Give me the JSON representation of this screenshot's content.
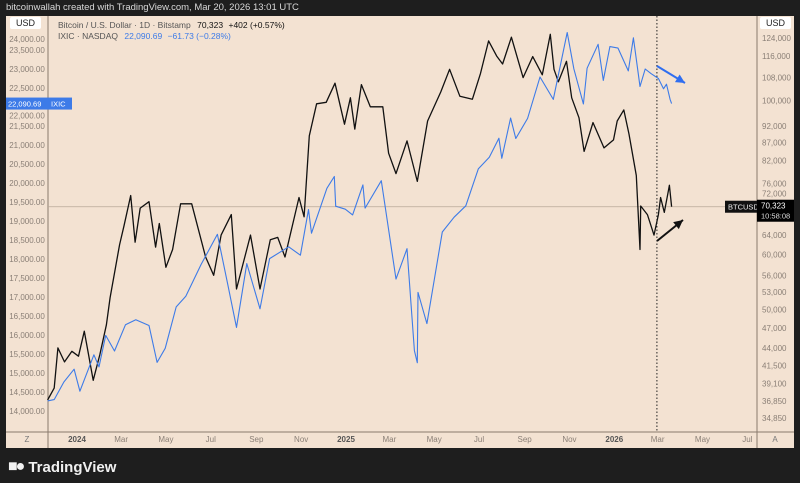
{
  "header": {
    "credit": "bitcoinwallah created with TradingView.com, Mar 20, 2026 13:01 UTC"
  },
  "legend": {
    "btc": {
      "label": "Bitcoin / U.S. Dollar · 1D · Bitstamp",
      "value": "70,323",
      "change": "+402 (+0.57%)"
    },
    "ixic": {
      "label": "IXIC · NASDAQ",
      "value": "22,090.69",
      "change": "−61.73 (−0.28%)"
    }
  },
  "axes": {
    "left_currency": "USD",
    "right_currency": "USD",
    "left_scale_label": "Z",
    "right_scale_label": "A"
  },
  "price_tags": {
    "ixic_value": "22,090.69",
    "ixic_name": "IXIC",
    "btc_name": "BTCUSD",
    "btc_value": "70,323",
    "btc_countdown": "10:58:08"
  },
  "colors": {
    "btc": "#111111",
    "ixic": "#3d7be8",
    "background": "#f3e2d2",
    "tag_ixic": "#3d7be8"
  },
  "footer": {
    "brand": "TradingView"
  },
  "chart_data": {
    "type": "line",
    "x_axis": {
      "ticks": [
        "2024",
        "Mar",
        "May",
        "Jul",
        "Sep",
        "Nov",
        "2025",
        "Mar",
        "May",
        "Jul",
        "Sep",
        "Nov",
        "2026",
        "Mar",
        "May",
        "Jul"
      ],
      "tick_dates": [
        "2024-01-01",
        "2024-03-01",
        "2024-05-01",
        "2024-07-01",
        "2024-09-01",
        "2024-11-01",
        "2025-01-01",
        "2025-03-01",
        "2025-05-01",
        "2025-07-01",
        "2025-09-01",
        "2025-11-01",
        "2026-01-01",
        "2026-03-01",
        "2026-05-01",
        "2026-07-01"
      ],
      "range": [
        "2023-11-22",
        "2026-07-25"
      ]
    },
    "left_axis": {
      "series": "IXIC",
      "scale": "linear",
      "range": [
        13800,
        24100
      ],
      "ticks": [
        "14,000.00",
        "14,500.00",
        "15,000.00",
        "15,500.00",
        "16,000.00",
        "16,500.00",
        "17,000.00",
        "17,500.00",
        "18,000.00",
        "18,500.00",
        "19,000.00",
        "19,500.00",
        "20,000.00",
        "20,500.00",
        "21,000.00",
        "21,500.00",
        "22,000.00",
        "22,500.00",
        "23,000.00",
        "23,500.00",
        "24,000.00"
      ]
    },
    "right_axis": {
      "series": "BTCUSD",
      "scale": "log",
      "ticks": [
        "124,000",
        "116,000",
        "108,000",
        "100,000",
        "92,000",
        "87,000",
        "82,000",
        "76,000",
        "72,000",
        "64,000",
        "60,000",
        "56,000",
        "53,000",
        "50,000",
        "47,000",
        "44,000",
        "41,500",
        "39,100",
        "36,850",
        "34,850"
      ]
    },
    "vertical_marker_date": "2026-02-28",
    "series": [
      {
        "name": "BTCUSD",
        "axis": "right",
        "points": [
          [
            "2023-11-22",
            37000
          ],
          [
            "2023-12-01",
            38500
          ],
          [
            "2023-12-06",
            44000
          ],
          [
            "2023-12-15",
            42000
          ],
          [
            "2023-12-25",
            43500
          ],
          [
            "2024-01-03",
            42800
          ],
          [
            "2024-01-11",
            46500
          ],
          [
            "2024-01-23",
            39500
          ],
          [
            "2024-02-01",
            43000
          ],
          [
            "2024-02-10",
            47500
          ],
          [
            "2024-02-15",
            52000
          ],
          [
            "2024-02-28",
            62000
          ],
          [
            "2024-03-05",
            66000
          ],
          [
            "2024-03-14",
            73000
          ],
          [
            "2024-03-20",
            62500
          ],
          [
            "2024-03-27",
            70000
          ],
          [
            "2024-04-08",
            71500
          ],
          [
            "2024-04-17",
            61500
          ],
          [
            "2024-04-22",
            66500
          ],
          [
            "2024-05-01",
            57500
          ],
          [
            "2024-05-10",
            61000
          ],
          [
            "2024-05-21",
            71000
          ],
          [
            "2024-06-05",
            71000
          ],
          [
            "2024-06-24",
            59500
          ],
          [
            "2024-07-05",
            56000
          ],
          [
            "2024-07-15",
            64000
          ],
          [
            "2024-07-29",
            68500
          ],
          [
            "2024-08-05",
            53500
          ],
          [
            "2024-08-24",
            64000
          ],
          [
            "2024-09-06",
            53500
          ],
          [
            "2024-09-20",
            63000
          ],
          [
            "2024-09-30",
            63500
          ],
          [
            "2024-10-10",
            59500
          ],
          [
            "2024-10-29",
            72500
          ],
          [
            "2024-11-05",
            68000
          ],
          [
            "2024-11-12",
            89000
          ],
          [
            "2024-11-22",
            99000
          ],
          [
            "2024-12-05",
            99500
          ],
          [
            "2024-12-17",
            106000
          ],
          [
            "2024-12-30",
            92500
          ],
          [
            "2025-01-07",
            101000
          ],
          [
            "2025-01-13",
            91000
          ],
          [
            "2025-01-22",
            105500
          ],
          [
            "2025-02-03",
            98000
          ],
          [
            "2025-02-20",
            98000
          ],
          [
            "2025-02-28",
            84000
          ],
          [
            "2025-03-10",
            78500
          ],
          [
            "2025-03-25",
            87500
          ],
          [
            "2025-04-08",
            76500
          ],
          [
            "2025-04-22",
            93500
          ],
          [
            "2025-05-10",
            103000
          ],
          [
            "2025-05-22",
            111000
          ],
          [
            "2025-06-05",
            101500
          ],
          [
            "2025-06-22",
            100500
          ],
          [
            "2025-07-03",
            109500
          ],
          [
            "2025-07-14",
            122000
          ],
          [
            "2025-07-25",
            116000
          ],
          [
            "2025-08-02",
            113000
          ],
          [
            "2025-08-14",
            123500
          ],
          [
            "2025-08-30",
            108000
          ],
          [
            "2025-09-12",
            115800
          ],
          [
            "2025-09-25",
            109000
          ],
          [
            "2025-10-06",
            124700
          ],
          [
            "2025-10-11",
            111000
          ],
          [
            "2025-10-17",
            106500
          ],
          [
            "2025-10-28",
            114000
          ],
          [
            "2025-11-04",
            101000
          ],
          [
            "2025-11-14",
            94500
          ],
          [
            "2025-11-21",
            84500
          ],
          [
            "2025-12-03",
            93000
          ],
          [
            "2025-12-18",
            85500
          ],
          [
            "2025-12-31",
            87800
          ],
          [
            "2026-01-05",
            93500
          ],
          [
            "2026-01-14",
            97000
          ],
          [
            "2026-01-21",
            89500
          ],
          [
            "2026-01-31",
            78000
          ],
          [
            "2026-02-05",
            61000
          ],
          [
            "2026-02-06",
            70500
          ],
          [
            "2026-02-15",
            68500
          ],
          [
            "2026-02-24",
            64000
          ],
          [
            "2026-03-02",
            68500
          ],
          [
            "2026-03-05",
            72500
          ],
          [
            "2026-03-10",
            69000
          ],
          [
            "2026-03-15",
            73500
          ],
          [
            "2026-03-17",
            75500
          ],
          [
            "2026-03-20",
            70323
          ]
        ]
      },
      {
        "name": "IXIC",
        "axis": "left",
        "points": [
          [
            "2023-11-22",
            14265
          ],
          [
            "2023-12-01",
            14300
          ],
          [
            "2023-12-14",
            14760
          ],
          [
            "2023-12-28",
            15100
          ],
          [
            "2024-01-05",
            14520
          ],
          [
            "2024-01-24",
            15480
          ],
          [
            "2024-01-31",
            15160
          ],
          [
            "2024-02-09",
            15990
          ],
          [
            "2024-02-21",
            15580
          ],
          [
            "2024-03-07",
            16270
          ],
          [
            "2024-03-21",
            16400
          ],
          [
            "2024-04-08",
            16250
          ],
          [
            "2024-04-19",
            15280
          ],
          [
            "2024-04-30",
            15650
          ],
          [
            "2024-05-15",
            16740
          ],
          [
            "2024-05-28",
            17020
          ],
          [
            "2024-06-18",
            17860
          ],
          [
            "2024-07-10",
            18650
          ],
          [
            "2024-07-24",
            17340
          ],
          [
            "2024-08-05",
            16200
          ],
          [
            "2024-08-19",
            17880
          ],
          [
            "2024-09-06",
            16690
          ],
          [
            "2024-09-19",
            18010
          ],
          [
            "2024-10-15",
            18320
          ],
          [
            "2024-10-31",
            18100
          ],
          [
            "2024-11-11",
            19300
          ],
          [
            "2024-11-15",
            18680
          ],
          [
            "2024-12-06",
            19860
          ],
          [
            "2024-12-16",
            20170
          ],
          [
            "2024-12-18",
            19390
          ],
          [
            "2024-12-31",
            19310
          ],
          [
            "2025-01-10",
            19160
          ],
          [
            "2025-01-24",
            19950
          ],
          [
            "2025-01-27",
            19340
          ],
          [
            "2025-02-18",
            20060
          ],
          [
            "2025-03-10",
            17470
          ],
          [
            "2025-03-25",
            18270
          ],
          [
            "2025-04-04",
            15590
          ],
          [
            "2025-04-08",
            15270
          ],
          [
            "2025-04-09",
            17120
          ],
          [
            "2025-04-21",
            16300
          ],
          [
            "2025-05-12",
            18710
          ],
          [
            "2025-05-28",
            19100
          ],
          [
            "2025-06-13",
            19400
          ],
          [
            "2025-06-30",
            20370
          ],
          [
            "2025-07-15",
            20680
          ],
          [
            "2025-07-28",
            21180
          ],
          [
            "2025-08-01",
            20650
          ],
          [
            "2025-08-13",
            21710
          ],
          [
            "2025-08-20",
            21170
          ],
          [
            "2025-09-05",
            21700
          ],
          [
            "2025-09-22",
            22790
          ],
          [
            "2025-10-10",
            22200
          ],
          [
            "2025-10-29",
            23960
          ],
          [
            "2025-11-07",
            23000
          ],
          [
            "2025-11-20",
            22080
          ],
          [
            "2025-11-25",
            23020
          ],
          [
            "2025-12-10",
            23650
          ],
          [
            "2025-12-17",
            22700
          ],
          [
            "2025-12-26",
            23590
          ],
          [
            "2026-01-06",
            23550
          ],
          [
            "2026-01-20",
            22950
          ],
          [
            "2026-01-27",
            23820
          ],
          [
            "2026-02-05",
            22540
          ],
          [
            "2026-02-12",
            23000
          ],
          [
            "2026-02-20",
            22880
          ],
          [
            "2026-03-02",
            22750
          ],
          [
            "2026-03-09",
            22480
          ],
          [
            "2026-03-13",
            22600
          ],
          [
            "2026-03-18",
            22200
          ],
          [
            "2026-03-20",
            22090.69
          ]
        ]
      }
    ],
    "annotations": [
      {
        "type": "arrow",
        "series": "IXIC",
        "direction": "down"
      },
      {
        "type": "arrow",
        "series": "BTCUSD",
        "direction": "up"
      }
    ]
  }
}
